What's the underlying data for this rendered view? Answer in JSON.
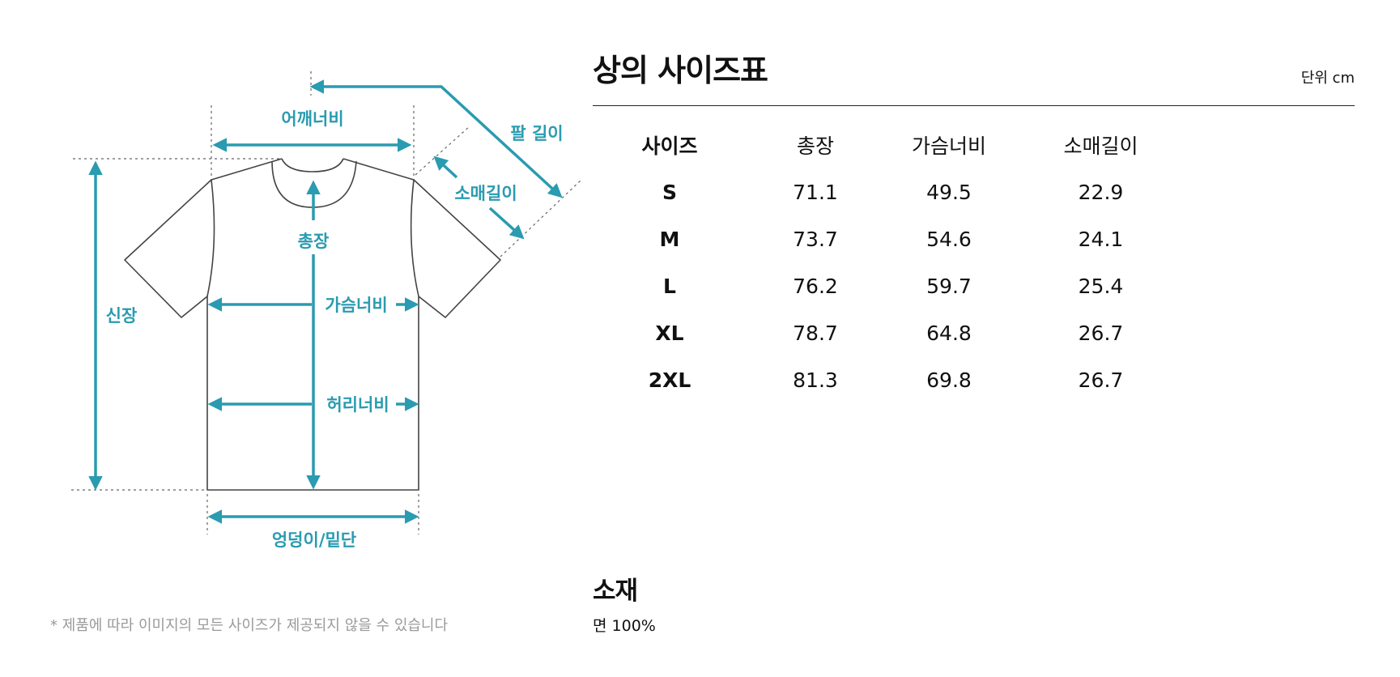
{
  "diagram": {
    "labels": {
      "shoulder_width": "어깨너비",
      "arm_length": "팔 길이",
      "sleeve_length": "소매길이",
      "total_length": "총장",
      "height": "신장",
      "chest_width": "가슴너비",
      "waist_width": "허리너비",
      "hip_hem": "엉덩이/밑단"
    },
    "accent_color": "#2a9bb0",
    "outline_color": "#444444"
  },
  "disclaimer": "* 제품에 따라 이미지의 모든 사이즈가 제공되지 않을 수 있습니다",
  "size_chart": {
    "title": "상의 사이즈표",
    "unit": "단위 cm",
    "headers": [
      "사이즈",
      "총장",
      "가슴너비",
      "소매길이"
    ],
    "rows": [
      [
        "S",
        "71.1",
        "49.5",
        "22.9"
      ],
      [
        "M",
        "73.7",
        "54.6",
        "24.1"
      ],
      [
        "L",
        "76.2",
        "59.7",
        "25.4"
      ],
      [
        "XL",
        "78.7",
        "64.8",
        "26.7"
      ],
      [
        "2XL",
        "81.3",
        "69.8",
        "26.7"
      ]
    ]
  },
  "material": {
    "title": "소재",
    "value": "면 100%"
  }
}
